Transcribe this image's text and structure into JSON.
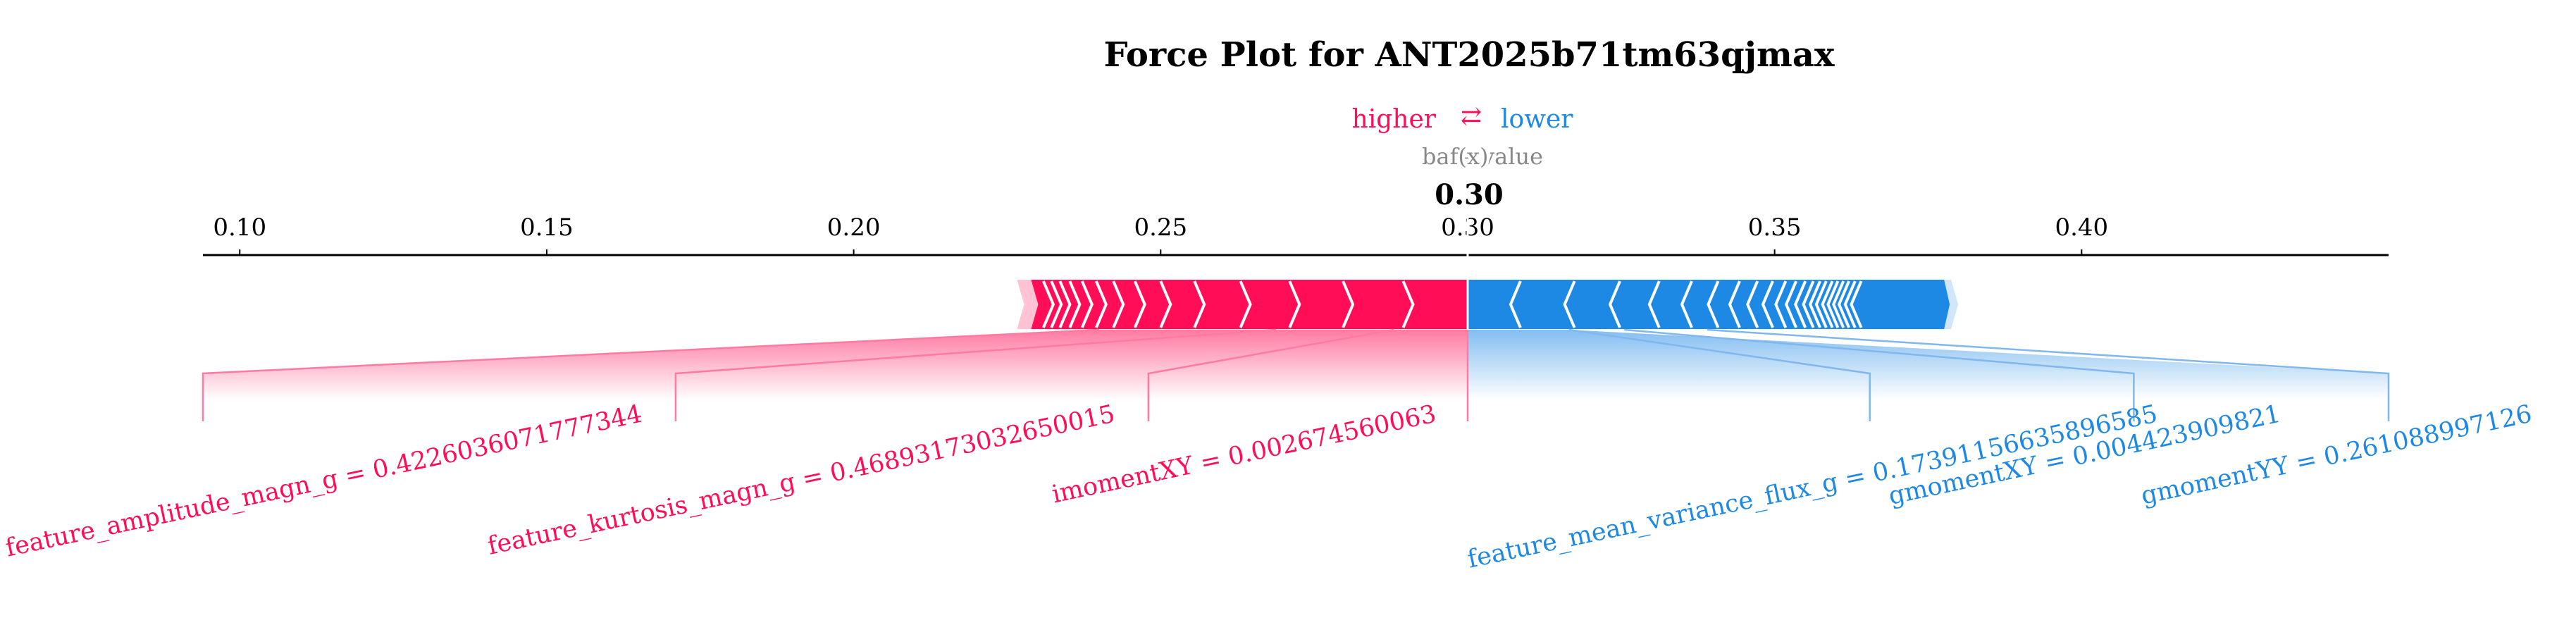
{
  "chart_data": {
    "type": "force",
    "title": "Force Plot for ANT2025b71tm63qjmax",
    "legend": {
      "higher": "higher",
      "arrow": "⇄",
      "lower": "lower"
    },
    "base_value_label": "base value",
    "fx_label": "f(x)",
    "output_value": 0.3,
    "output_value_text": "0.30",
    "axis": {
      "xlim": [
        0.094,
        0.45
      ],
      "ticks": [
        0.1,
        0.15,
        0.2,
        0.25,
        0.3,
        0.35,
        0.4
      ],
      "tick_labels": [
        "0.10",
        "0.15",
        "0.20",
        "0.25",
        "0.30",
        "0.35",
        "0.40"
      ]
    },
    "positive_range": [
      0.2289,
      0.2995
    ],
    "negative_range": [
      0.2995,
      0.3776
    ],
    "pos_chevrons": [
      0.2309,
      0.2322,
      0.2336,
      0.2352,
      0.2372,
      0.2395,
      0.2423,
      0.2458,
      0.25,
      0.2555,
      0.263,
      0.271,
      0.2797,
      0.2895
    ],
    "neg_chevrons": [
      0.3086,
      0.3174,
      0.3248,
      0.3312,
      0.3365,
      0.3408,
      0.3443,
      0.3472,
      0.3497,
      0.3518,
      0.3535,
      0.355,
      0.3563,
      0.3574,
      0.3584,
      0.3594,
      0.3603,
      0.3612,
      0.3621,
      0.3631,
      0.3641
    ],
    "features_positive": [
      {
        "label": "feature_amplitude_magn_g = 0.4226036071777344",
        "from": 0.24,
        "to": 0.094
      },
      {
        "label": "feature_kurtosis_magn_g = 0.46893173032650015",
        "from": 0.2688,
        "to": 0.171
      },
      {
        "label": "imomentXY = 0.002674560063",
        "from": 0.288,
        "to": 0.248
      }
    ],
    "features_negative": [
      {
        "label": "feature_mean_variance_flux_g = 0.17391156635896585",
        "from": 0.3165,
        "to": 0.3655
      },
      {
        "label": "gmomentXY = 0.004423909821",
        "from": 0.3255,
        "to": 0.4085
      },
      {
        "label": "gmomentYY = 0.261088997126",
        "from": 0.339,
        "to": 0.45
      }
    ],
    "colors": {
      "positive": "#ff0d57",
      "negative": "#1e88e5",
      "positive_light": "#ffc3d5",
      "negative_light": "#d1e6fa",
      "positive_line": "#ff7aa3",
      "negative_line": "#7fb7ee",
      "axis": "#000000"
    }
  }
}
